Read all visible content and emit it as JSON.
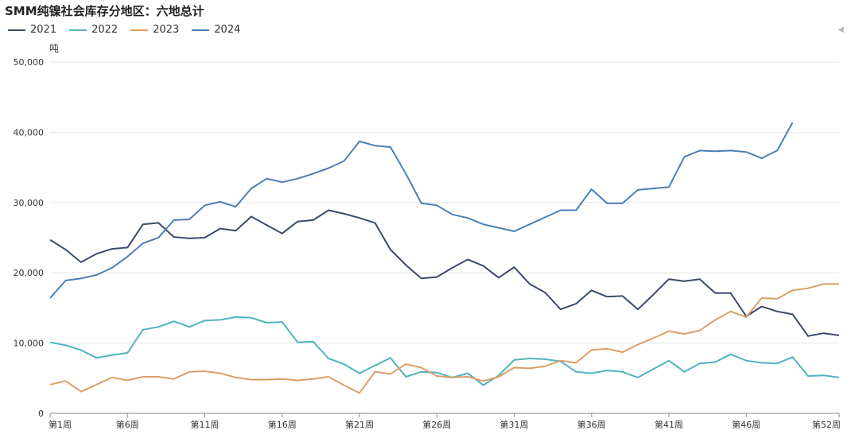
{
  "chart_data": {
    "type": "line",
    "title": "SMM纯镍社会库存分地区：六地总计",
    "ylabel": "吨",
    "ylim": [
      0,
      50000
    ],
    "yticks": [
      0,
      10000,
      20000,
      30000,
      40000,
      50000
    ],
    "ytick_labels": [
      "0",
      "10,000",
      "20,000",
      "30,000",
      "40,000",
      "50,000"
    ],
    "x_count": 52,
    "xtick_labels": [
      "第1周",
      "第6周",
      "第11周",
      "第16周",
      "第21周",
      "第26周",
      "第31周",
      "第36周",
      "第41周",
      "第46周",
      "第52周"
    ],
    "xtick_weeks": [
      1,
      6,
      11,
      16,
      21,
      26,
      31,
      36,
      41,
      46,
      52
    ],
    "grid": "horizontal",
    "legend_position": "top-left",
    "series": [
      {
        "name": "2021",
        "color": "#3b4a6b",
        "values": [
          24700,
          23300,
          21500,
          22700,
          23400,
          23600,
          26900,
          27100,
          25100,
          24900,
          25000,
          26300,
          26000,
          28000,
          26800,
          25600,
          27300,
          27500,
          28900,
          28400,
          27800,
          27100,
          23300,
          21100,
          19200,
          19400,
          20700,
          21900,
          21000,
          19300,
          20800,
          18400,
          17200,
          14800,
          15600,
          17500,
          16600,
          16700,
          14800,
          16900,
          19100,
          18800,
          19100,
          17100,
          17100,
          13800,
          15200,
          14500,
          14100,
          11000,
          11400,
          11100
        ]
      },
      {
        "name": "2022",
        "color": "#4fb3be",
        "values": [
          10100,
          9700,
          9000,
          7900,
          8300,
          8600,
          11900,
          12300,
          13100,
          12300,
          13200,
          13300,
          13700,
          13600,
          12900,
          13000,
          10100,
          10200,
          7800,
          7000,
          5700,
          6800,
          7900,
          5200,
          5900,
          5800,
          5100,
          5700,
          4000,
          5400,
          7600,
          7800,
          7700,
          7400,
          5900,
          5700,
          6100,
          5900,
          5100,
          6300,
          7500,
          5900,
          7100,
          7300,
          8400,
          7500,
          7200,
          7100,
          8000,
          5300,
          5400,
          5100
        ]
      },
      {
        "name": "2023",
        "color": "#d9a066",
        "values": [
          4100,
          4600,
          3100,
          4100,
          5100,
          4700,
          5200,
          5200,
          4900,
          5900,
          6000,
          5700,
          5100,
          4800,
          4800,
          4900,
          4700,
          4900,
          5200,
          4000,
          2900,
          5900,
          5600,
          7000,
          6500,
          5300,
          5100,
          5200,
          4600,
          5200,
          6500,
          6400,
          6700,
          7500,
          7200,
          9000,
          9200,
          8700,
          9800,
          10700,
          11700,
          11300,
          11800,
          13300,
          14500,
          13700,
          16400,
          16300,
          17500,
          17800,
          18400,
          18400
        ]
      },
      {
        "name": "2024",
        "color": "#4a7fb5",
        "values": [
          16400,
          18900,
          19200,
          19700,
          20700,
          22300,
          24200,
          25000,
          27500,
          27600,
          29600,
          30100,
          29400,
          32000,
          33400,
          32900,
          33400,
          34100,
          34900,
          35900,
          38700,
          38100,
          37900,
          34100,
          29900,
          29600,
          28300,
          27800,
          26900,
          26400,
          25900,
          26900,
          27900,
          28900,
          28900,
          31900,
          29900,
          29900,
          31800,
          32000,
          32200,
          36500,
          37400,
          37300,
          37400,
          37200,
          36300,
          37400,
          41400
        ]
      }
    ]
  }
}
